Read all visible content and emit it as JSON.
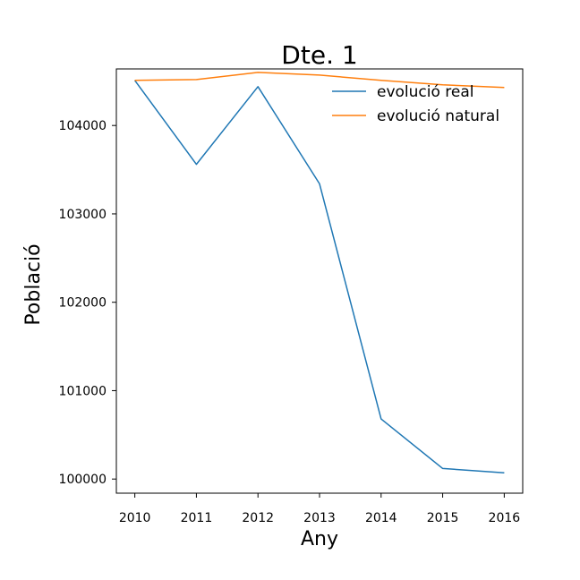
{
  "chart_data": {
    "type": "line",
    "title": "Dte. 1",
    "xlabel": "Any",
    "ylabel": "Població",
    "x": [
      2010,
      2011,
      2012,
      2013,
      2014,
      2015,
      2016
    ],
    "x_tick_labels": [
      "2010",
      "2011",
      "2012",
      "2013",
      "2014",
      "2015",
      "2016"
    ],
    "y_ticks": [
      100000,
      101000,
      102000,
      103000,
      104000
    ],
    "y_tick_labels": [
      "100000",
      "101000",
      "102000",
      "103000",
      "104000"
    ],
    "xlim": [
      2009.7,
      2016.3
    ],
    "ylim": [
      99840,
      104640
    ],
    "grid": false,
    "legend_position": "top-right",
    "series": [
      {
        "name": "evolució real",
        "color": "#1f77b4",
        "values": [
          104510,
          103560,
          104440,
          103340,
          100680,
          100120,
          100070
        ]
      },
      {
        "name": "evolució natural",
        "color": "#ff7f0e",
        "values": [
          104510,
          104520,
          104600,
          104570,
          104510,
          104460,
          104430
        ]
      }
    ]
  }
}
